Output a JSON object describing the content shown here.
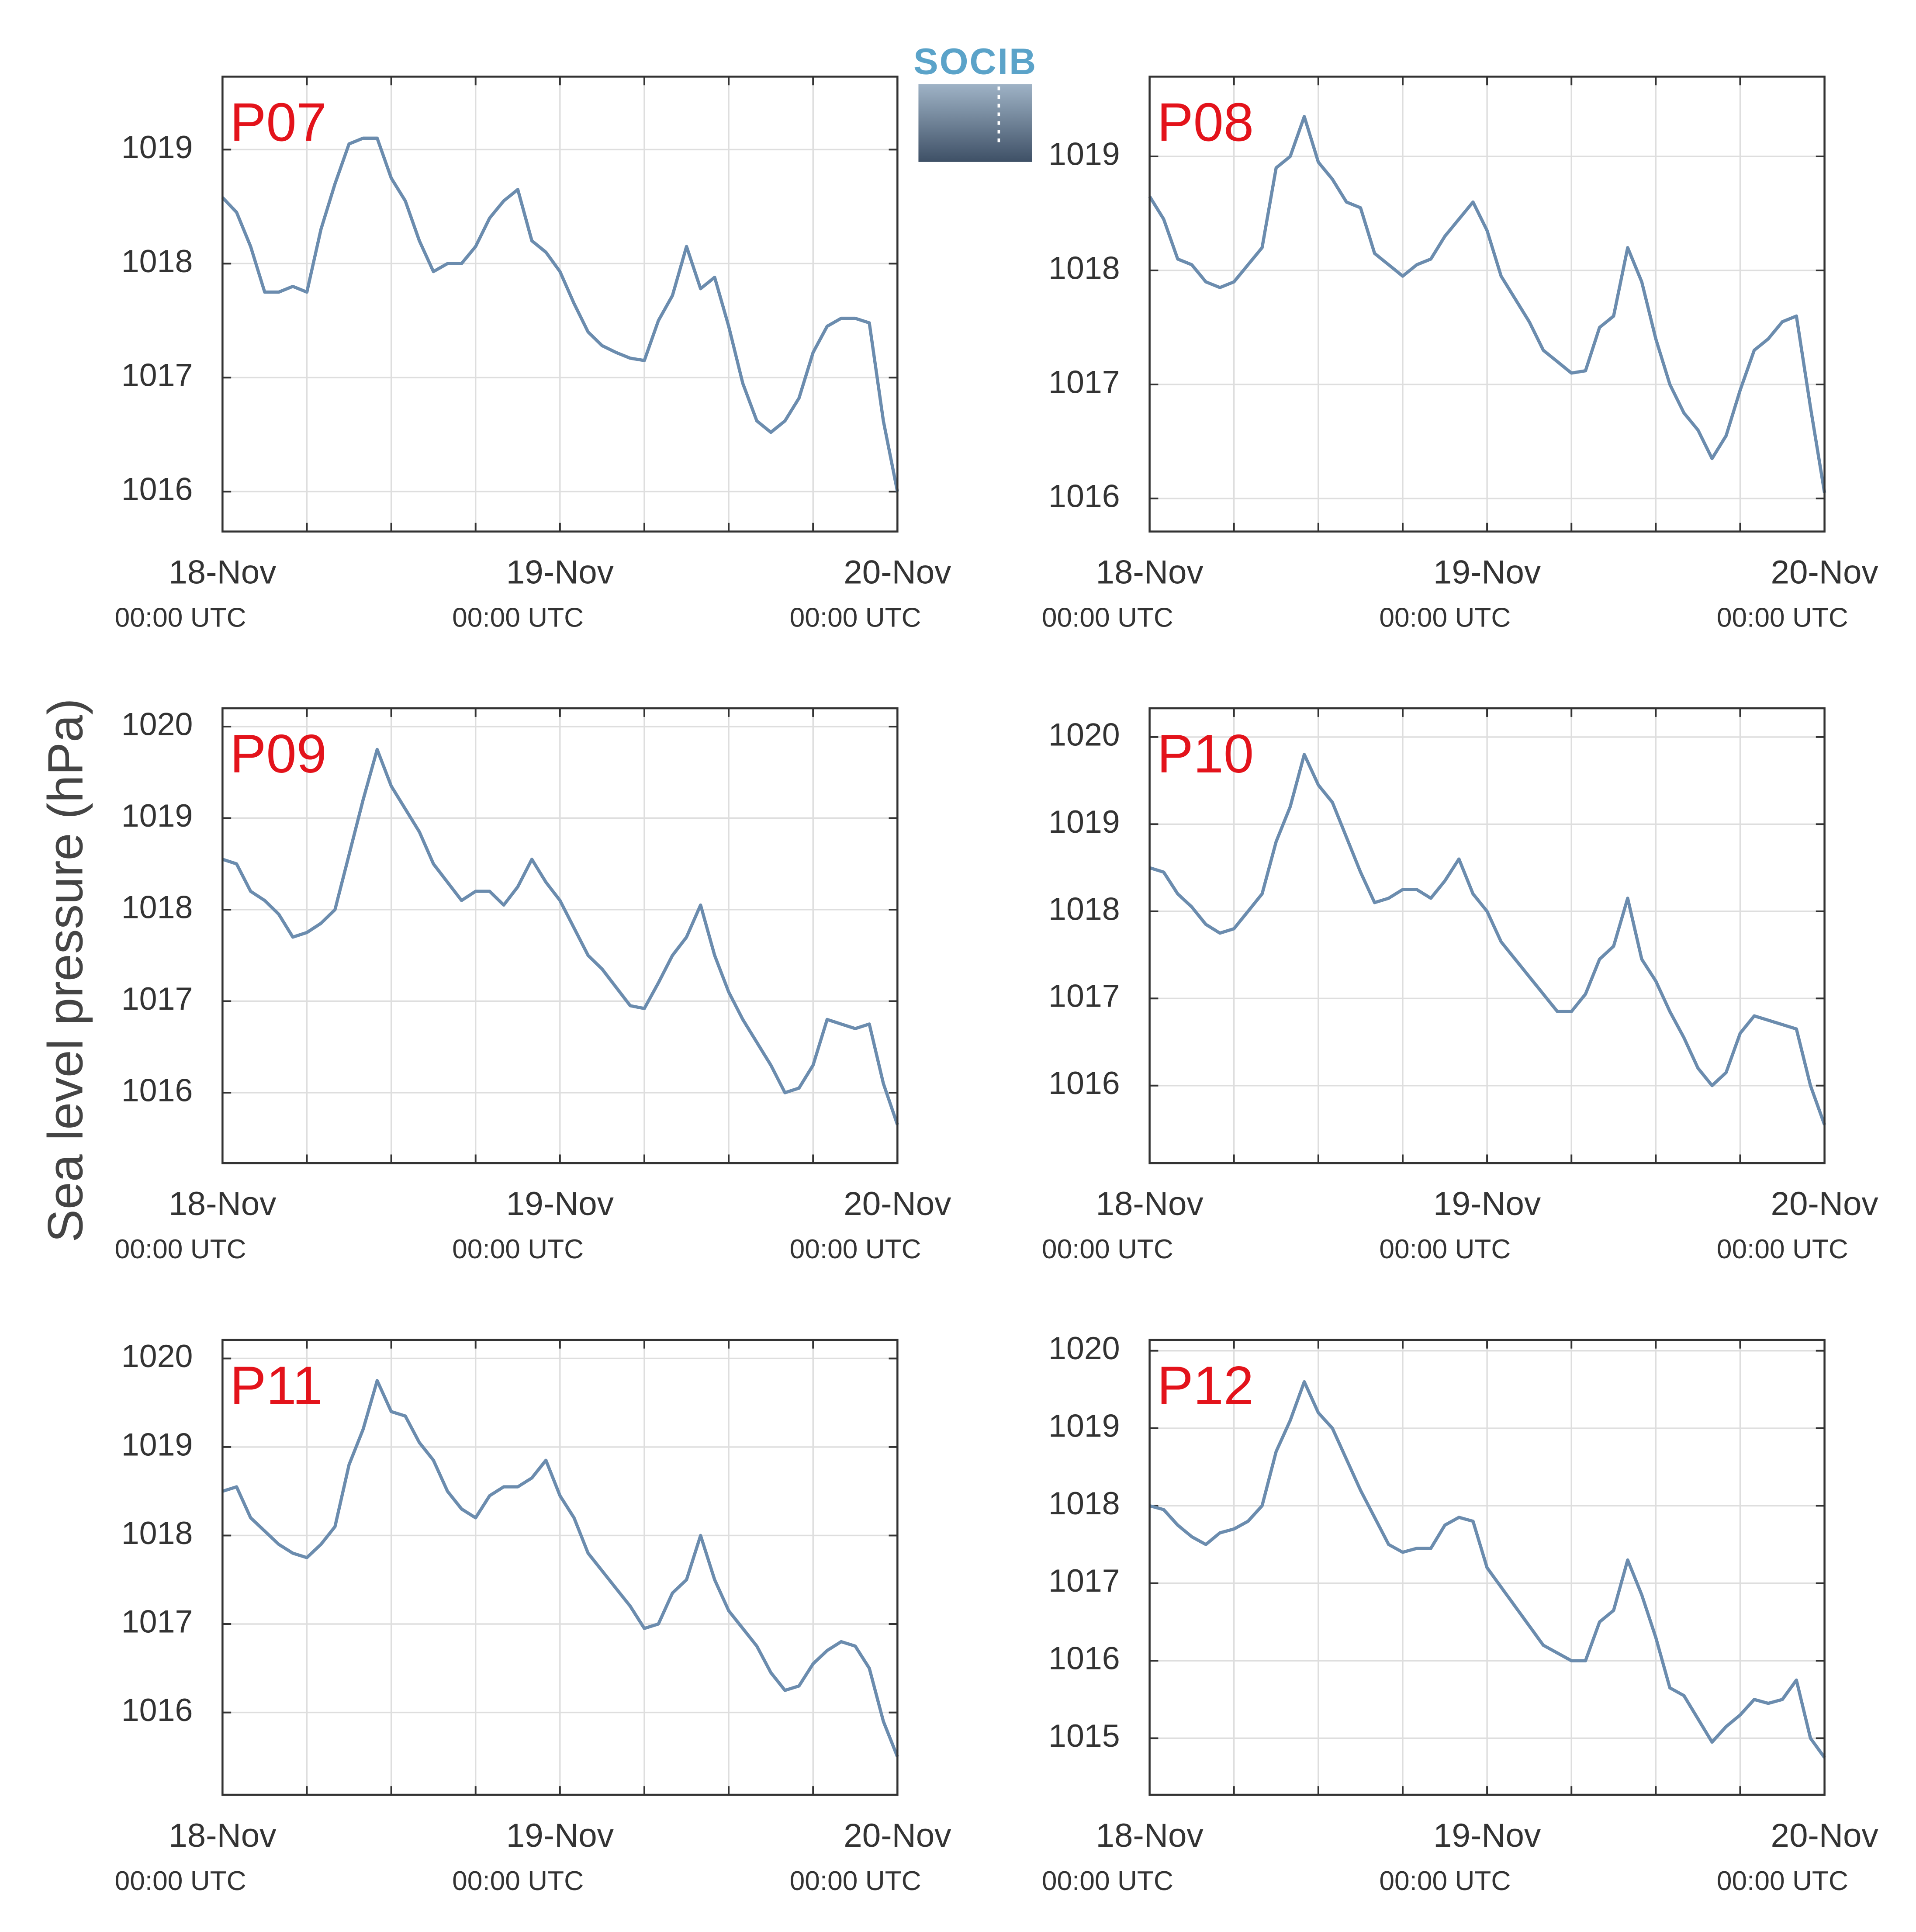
{
  "ylabel": "Sea level pressure (hPa)",
  "logo": "SOCIB",
  "chart_data": [
    {
      "type": "line",
      "title": "P07",
      "x": [
        0,
        1,
        2,
        3,
        4,
        5,
        6,
        7,
        8,
        9,
        10,
        11,
        12,
        13,
        14,
        15,
        16,
        17,
        18,
        19,
        20,
        21,
        22,
        23,
        24,
        25,
        26,
        27,
        28,
        29,
        30,
        31,
        32,
        33,
        34,
        35,
        36,
        37,
        38,
        39,
        40,
        41,
        42,
        43,
        44,
        45,
        46,
        47,
        48
      ],
      "color": "#6b8cae",
      "values": [
        1018.58,
        1018.45,
        1018.15,
        1017.75,
        1017.75,
        1017.8,
        1017.75,
        1018.3,
        1018.7,
        1019.05,
        1019.1,
        1019.1,
        1018.75,
        1018.55,
        1018.2,
        1017.93,
        1018.0,
        1018.0,
        1018.15,
        1018.4,
        1018.55,
        1018.65,
        1018.2,
        1018.1,
        1017.93,
        1017.65,
        1017.4,
        1017.28,
        1017.22,
        1017.17,
        1017.15,
        1017.5,
        1017.72,
        1018.15,
        1017.78,
        1017.88,
        1017.45,
        1016.95,
        1016.62,
        1016.52,
        1016.62,
        1016.82,
        1017.22,
        1017.45,
        1017.52,
        1017.52,
        1017.48,
        1016.62,
        1016.0
      ],
      "xlim": [
        0,
        48
      ],
      "xticks": [
        {
          "value": 0,
          "label": [
            "18-Nov",
            "00:00 UTC"
          ]
        },
        {
          "value": 24,
          "label": [
            "19-Nov",
            "00:00 UTC"
          ]
        },
        {
          "value": 48,
          "label": [
            "20-Nov",
            "00:00 UTC"
          ]
        }
      ],
      "xminorticks": [
        6,
        12,
        18,
        30,
        36,
        42
      ],
      "ylim": [
        1015.65,
        1019.64
      ],
      "yticks": [
        1016,
        1017,
        1018,
        1019
      ],
      "grid": true
    },
    {
      "type": "line",
      "title": "P08",
      "x": [
        0,
        1,
        2,
        3,
        4,
        5,
        6,
        7,
        8,
        9,
        10,
        11,
        12,
        13,
        14,
        15,
        16,
        17,
        18,
        19,
        20,
        21,
        22,
        23,
        24,
        25,
        26,
        27,
        28,
        29,
        30,
        31,
        32,
        33,
        34,
        35,
        36,
        37,
        38,
        39,
        40,
        41,
        42,
        43,
        44,
        45,
        46,
        47,
        48
      ],
      "color": "#6b8cae",
      "values": [
        1018.65,
        1018.45,
        1018.1,
        1018.05,
        1017.9,
        1017.85,
        1017.9,
        1018.05,
        1018.2,
        1018.9,
        1019.0,
        1019.35,
        1018.95,
        1018.8,
        1018.6,
        1018.55,
        1018.15,
        1018.05,
        1017.95,
        1018.05,
        1018.1,
        1018.3,
        1018.45,
        1018.6,
        1018.35,
        1017.95,
        1017.75,
        1017.55,
        1017.3,
        1017.2,
        1017.1,
        1017.12,
        1017.5,
        1017.6,
        1018.2,
        1017.9,
        1017.4,
        1017.0,
        1016.75,
        1016.6,
        1016.35,
        1016.55,
        1016.95,
        1017.3,
        1017.4,
        1017.55,
        1017.6,
        1016.8,
        1016.05
      ],
      "xlim": [
        0,
        48
      ],
      "xticks": [
        {
          "value": 0,
          "label": [
            "18-Nov",
            "00:00 UTC"
          ]
        },
        {
          "value": 24,
          "label": [
            "19-Nov",
            "00:00 UTC"
          ]
        },
        {
          "value": 48,
          "label": [
            "20-Nov",
            "00:00 UTC"
          ]
        }
      ],
      "xminorticks": [
        6,
        12,
        18,
        30,
        36,
        42
      ],
      "ylim": [
        1015.71,
        1019.7
      ],
      "yticks": [
        1016,
        1017,
        1018,
        1019
      ],
      "grid": true
    },
    {
      "type": "line",
      "title": "P09",
      "x": [
        0,
        1,
        2,
        3,
        4,
        5,
        6,
        7,
        8,
        9,
        10,
        11,
        12,
        13,
        14,
        15,
        16,
        17,
        18,
        19,
        20,
        21,
        22,
        23,
        24,
        25,
        26,
        27,
        28,
        29,
        30,
        31,
        32,
        33,
        34,
        35,
        36,
        37,
        38,
        39,
        40,
        41,
        42,
        43,
        44,
        45,
        46,
        47,
        48
      ],
      "color": "#6b8cae",
      "values": [
        1018.55,
        1018.5,
        1018.2,
        1018.1,
        1017.95,
        1017.7,
        1017.75,
        1017.85,
        1018.0,
        1018.6,
        1019.2,
        1019.75,
        1019.35,
        1019.1,
        1018.85,
        1018.5,
        1018.3,
        1018.1,
        1018.2,
        1018.2,
        1018.05,
        1018.25,
        1018.55,
        1018.3,
        1018.1,
        1017.8,
        1017.5,
        1017.35,
        1017.15,
        1016.95,
        1016.92,
        1017.2,
        1017.5,
        1017.7,
        1018.05,
        1017.5,
        1017.1,
        1016.8,
        1016.55,
        1016.3,
        1016.0,
        1016.05,
        1016.3,
        1016.8,
        1016.75,
        1016.7,
        1016.75,
        1016.1,
        1015.65
      ],
      "xlim": [
        0,
        48
      ],
      "xticks": [
        {
          "value": 0,
          "label": [
            "18-Nov",
            "00:00 UTC"
          ]
        },
        {
          "value": 24,
          "label": [
            "19-Nov",
            "00:00 UTC"
          ]
        },
        {
          "value": 48,
          "label": [
            "20-Nov",
            "00:00 UTC"
          ]
        }
      ],
      "xminorticks": [
        6,
        12,
        18,
        30,
        36,
        42
      ],
      "ylim": [
        1015.23,
        1020.2
      ],
      "yticks": [
        1016,
        1017,
        1018,
        1019,
        1020
      ],
      "grid": true
    },
    {
      "type": "line",
      "title": "P10",
      "x": [
        0,
        1,
        2,
        3,
        4,
        5,
        6,
        7,
        8,
        9,
        10,
        11,
        12,
        13,
        14,
        15,
        16,
        17,
        18,
        19,
        20,
        21,
        22,
        23,
        24,
        25,
        26,
        27,
        28,
        29,
        30,
        31,
        32,
        33,
        34,
        35,
        36,
        37,
        38,
        39,
        40,
        41,
        42,
        43,
        44,
        45,
        46,
        47,
        48
      ],
      "color": "#6b8cae",
      "values": [
        1018.5,
        1018.45,
        1018.2,
        1018.05,
        1017.85,
        1017.75,
        1017.8,
        1018.0,
        1018.2,
        1018.8,
        1019.2,
        1019.8,
        1019.45,
        1019.25,
        1018.85,
        1018.45,
        1018.1,
        1018.15,
        1018.25,
        1018.25,
        1018.15,
        1018.35,
        1018.6,
        1018.2,
        1018.0,
        1017.65,
        1017.45,
        1017.25,
        1017.05,
        1016.85,
        1016.85,
        1017.05,
        1017.45,
        1017.6,
        1018.15,
        1017.45,
        1017.2,
        1016.85,
        1016.55,
        1016.2,
        1016.0,
        1016.15,
        1016.6,
        1016.8,
        1016.75,
        1016.7,
        1016.65,
        1016.0,
        1015.55
      ],
      "xlim": [
        0,
        48
      ],
      "xticks": [
        {
          "value": 0,
          "label": [
            "18-Nov",
            "00:00 UTC"
          ]
        },
        {
          "value": 24,
          "label": [
            "19-Nov",
            "00:00 UTC"
          ]
        },
        {
          "value": 48,
          "label": [
            "20-Nov",
            "00:00 UTC"
          ]
        }
      ],
      "xminorticks": [
        6,
        12,
        18,
        30,
        36,
        42
      ],
      "ylim": [
        1015.11,
        1020.33
      ],
      "yticks": [
        1016,
        1017,
        1018,
        1019,
        1020
      ],
      "grid": true
    },
    {
      "type": "line",
      "title": "P11",
      "x": [
        0,
        1,
        2,
        3,
        4,
        5,
        6,
        7,
        8,
        9,
        10,
        11,
        12,
        13,
        14,
        15,
        16,
        17,
        18,
        19,
        20,
        21,
        22,
        23,
        24,
        25,
        26,
        27,
        28,
        29,
        30,
        31,
        32,
        33,
        34,
        35,
        36,
        37,
        38,
        39,
        40,
        41,
        42,
        43,
        44,
        45,
        46,
        47,
        48
      ],
      "color": "#6b8cae",
      "values": [
        1018.5,
        1018.55,
        1018.2,
        1018.05,
        1017.9,
        1017.8,
        1017.75,
        1017.9,
        1018.1,
        1018.8,
        1019.2,
        1019.75,
        1019.4,
        1019.35,
        1019.05,
        1018.85,
        1018.5,
        1018.3,
        1018.2,
        1018.45,
        1018.55,
        1018.55,
        1018.65,
        1018.85,
        1018.45,
        1018.2,
        1017.8,
        1017.6,
        1017.4,
        1017.2,
        1016.95,
        1017.0,
        1017.35,
        1017.5,
        1018.0,
        1017.5,
        1017.15,
        1016.95,
        1016.75,
        1016.45,
        1016.25,
        1016.3,
        1016.55,
        1016.7,
        1016.8,
        1016.75,
        1016.5,
        1015.9,
        1015.5
      ],
      "xlim": [
        0,
        48
      ],
      "xticks": [
        {
          "value": 0,
          "label": [
            "18-Nov",
            "00:00 UTC"
          ]
        },
        {
          "value": 24,
          "label": [
            "19-Nov",
            "00:00 UTC"
          ]
        },
        {
          "value": 48,
          "label": [
            "20-Nov",
            "00:00 UTC"
          ]
        }
      ],
      "xminorticks": [
        6,
        12,
        18,
        30,
        36,
        42
      ],
      "ylim": [
        1015.07,
        1020.21
      ],
      "yticks": [
        1016,
        1017,
        1018,
        1019,
        1020
      ],
      "grid": true
    },
    {
      "type": "line",
      "title": "P12",
      "x": [
        0,
        1,
        2,
        3,
        4,
        5,
        6,
        7,
        8,
        9,
        10,
        11,
        12,
        13,
        14,
        15,
        16,
        17,
        18,
        19,
        20,
        21,
        22,
        23,
        24,
        25,
        26,
        27,
        28,
        29,
        30,
        31,
        32,
        33,
        34,
        35,
        36,
        37,
        38,
        39,
        40,
        41,
        42,
        43,
        44,
        45,
        46,
        47,
        48
      ],
      "color": "#6b8cae",
      "values": [
        1018.0,
        1017.95,
        1017.75,
        1017.6,
        1017.5,
        1017.65,
        1017.7,
        1017.8,
        1018.0,
        1018.7,
        1019.1,
        1019.6,
        1019.2,
        1019.0,
        1018.6,
        1018.2,
        1017.85,
        1017.5,
        1017.4,
        1017.45,
        1017.45,
        1017.75,
        1017.85,
        1017.8,
        1017.2,
        1016.95,
        1016.7,
        1016.45,
        1016.2,
        1016.1,
        1016.0,
        1016.0,
        1016.5,
        1016.65,
        1017.3,
        1016.85,
        1016.3,
        1015.65,
        1015.55,
        1015.25,
        1014.95,
        1015.15,
        1015.3,
        1015.5,
        1015.45,
        1015.5,
        1015.75,
        1015.0,
        1014.75
      ],
      "xlim": [
        0,
        48
      ],
      "xticks": [
        {
          "value": 0,
          "label": [
            "18-Nov",
            "00:00 UTC"
          ]
        },
        {
          "value": 24,
          "label": [
            "19-Nov",
            "00:00 UTC"
          ]
        },
        {
          "value": 48,
          "label": [
            "20-Nov",
            "00:00 UTC"
          ]
        }
      ],
      "xminorticks": [
        6,
        12,
        18,
        30,
        36,
        42
      ],
      "ylim": [
        1014.27,
        1020.14
      ],
      "yticks": [
        1015,
        1016,
        1017,
        1018,
        1019,
        1020
      ],
      "grid": true
    }
  ]
}
